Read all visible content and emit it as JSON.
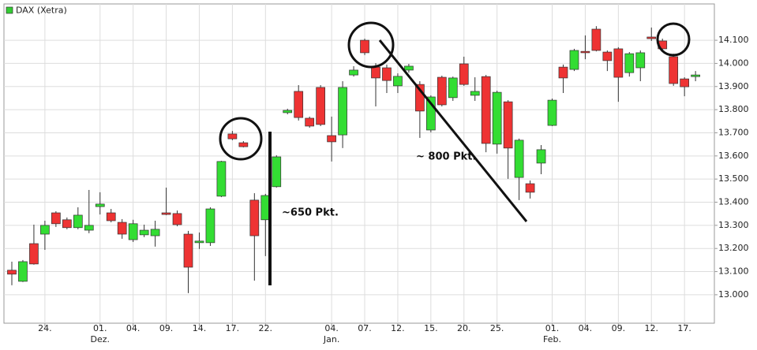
{
  "chart_data": {
    "type": "candlestick",
    "series": [
      {
        "name": "DAX (Xetra)",
        "legend_color": "#33cc33",
        "open": [
          13106,
          13058,
          13221,
          13262,
          13354,
          13324,
          13290,
          13279,
          13381,
          13354,
          13313,
          13238,
          13259,
          13255,
          13354,
          13351,
          13262,
          13225,
          13225,
          13426,
          13695,
          13657,
          13409,
          13324,
          13467,
          13787,
          13879,
          13763,
          13896,
          13688,
          13691,
          13950,
          14100,
          13984,
          13981,
          13903,
          13971,
          13909,
          13712,
          13940,
          13852,
          13998,
          13862,
          13943,
          13651,
          13834,
          13507,
          13480,
          13569,
          13732,
          13984,
          13974,
          14052,
          14148,
          14049,
          14063,
          13960,
          13981,
          14114,
          14097,
          14029,
          13933,
          13943
        ],
        "high": [
          13143,
          13150,
          13303,
          13320,
          13361,
          13334,
          13378,
          13453,
          13443,
          13371,
          13327,
          13324,
          13303,
          13320,
          13463,
          13364,
          13276,
          13269,
          13378,
          13579,
          13708,
          13664,
          13439,
          13436,
          13603,
          13804,
          13906,
          13770,
          13906,
          13770,
          13923,
          13988,
          14107,
          14001,
          13995,
          13957,
          13998,
          13923,
          13862,
          13947,
          13943,
          14029,
          13940,
          13950,
          13882,
          13841,
          13675,
          13494,
          13647,
          13848,
          13995,
          14063,
          14121,
          14161,
          14056,
          14070,
          14049,
          14056,
          14155,
          14107,
          14042,
          13940,
          13967
        ],
        "low": [
          13041,
          13055,
          13130,
          13194,
          13293,
          13283,
          13283,
          13266,
          13347,
          13313,
          13242,
          13228,
          13249,
          13208,
          13344,
          13296,
          13007,
          13198,
          13211,
          13422,
          13668,
          13637,
          13061,
          13167,
          13463,
          13780,
          13753,
          13722,
          13729,
          13576,
          13634,
          13943,
          14036,
          13814,
          13872,
          13872,
          13960,
          13678,
          13702,
          13814,
          13838,
          13903,
          13838,
          13616,
          13610,
          13501,
          13409,
          13416,
          13521,
          13729,
          13872,
          13967,
          14018,
          14052,
          13967,
          13834,
          13943,
          13923,
          14097,
          14052,
          13903,
          13858,
          13923
        ],
        "close": [
          13089,
          13143,
          13133,
          13300,
          13307,
          13290,
          13344,
          13300,
          13392,
          13320,
          13262,
          13307,
          13279,
          13283,
          13347,
          13303,
          13119,
          13232,
          13371,
          13576,
          13674,
          13640,
          13255,
          13429,
          13596,
          13797,
          13766,
          13729,
          13736,
          13661,
          13896,
          13971,
          14046,
          13937,
          13926,
          13944,
          13988,
          13794,
          13855,
          13821,
          13937,
          13909,
          13879,
          13654,
          13875,
          13634,
          13668,
          13443,
          13627,
          13841,
          13937,
          14056,
          14046,
          14056,
          14012,
          13940,
          14042,
          14046,
          14107,
          14063,
          13913,
          13899,
          13950
        ]
      }
    ],
    "up_color": "#33dd33",
    "down_color": "#ee3333",
    "categories": [
      null,
      null,
      null,
      "24.",
      null,
      null,
      null,
      null,
      "01.",
      null,
      null,
      "04.",
      null,
      null,
      "09.",
      null,
      null,
      "14.",
      null,
      null,
      "17.",
      null,
      null,
      "22.",
      null,
      null,
      null,
      null,
      null,
      "04.",
      null,
      null,
      "07.",
      null,
      null,
      "12.",
      null,
      null,
      "15.",
      null,
      null,
      "20.",
      null,
      null,
      "25.",
      null,
      null,
      null,
      null,
      "01.",
      null,
      null,
      "04.",
      null,
      null,
      "09.",
      null,
      null,
      "12.",
      null,
      null,
      "17.",
      null
    ],
    "month_labels": [
      null,
      null,
      null,
      null,
      null,
      null,
      null,
      null,
      "Dez.",
      null,
      null,
      null,
      null,
      null,
      null,
      null,
      null,
      null,
      null,
      null,
      null,
      null,
      null,
      null,
      null,
      null,
      null,
      null,
      null,
      "Jan.",
      null,
      null,
      null,
      null,
      null,
      null,
      null,
      null,
      null,
      null,
      null,
      null,
      null,
      null,
      null,
      null,
      null,
      null,
      null,
      "Feb.",
      null,
      null,
      null,
      null,
      null,
      null,
      null,
      null,
      null,
      null,
      null,
      null,
      null
    ],
    "ylim": [
      12877,
      14257
    ],
    "yticks": [
      {
        "value": 13000,
        "label": "13.000"
      },
      {
        "value": 13100,
        "label": "13.100"
      },
      {
        "value": 13200,
        "label": "13.200"
      },
      {
        "value": 13300,
        "label": "13.300"
      },
      {
        "value": 13400,
        "label": "13.400"
      },
      {
        "value": 13500,
        "label": "13.500"
      },
      {
        "value": 13600,
        "label": "13.600"
      },
      {
        "value": 13700,
        "label": "13.700"
      },
      {
        "value": 13800,
        "label": "13.800"
      },
      {
        "value": 13900,
        "label": "13.900"
      },
      {
        "value": 14000,
        "label": "14.000"
      },
      {
        "value": 14100,
        "label": "14.100"
      }
    ],
    "grid": true,
    "annotations": [
      "~650 Pkt.",
      "~ 800 Pkt."
    ]
  }
}
